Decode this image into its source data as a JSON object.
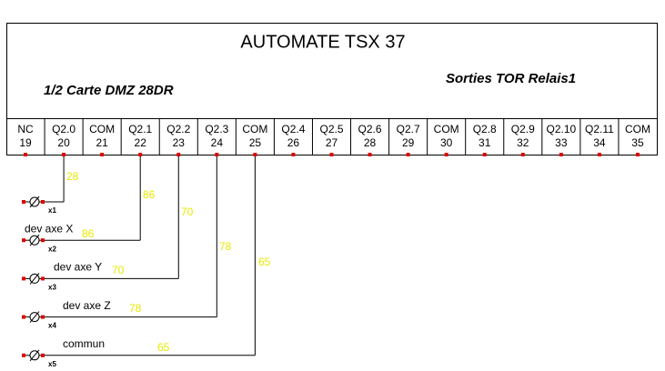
{
  "header": {
    "title": "AUTOMATE TSX 37",
    "card": "1/2 Carte DMZ 28DR",
    "outputs": "Sorties TOR Relais1"
  },
  "terminals": [
    {
      "label": "NC",
      "number": "19"
    },
    {
      "label": "Q2.0",
      "number": "20"
    },
    {
      "label": "COM",
      "number": "21"
    },
    {
      "label": "Q2.1",
      "number": "22"
    },
    {
      "label": "Q2.2",
      "number": "23"
    },
    {
      "label": "Q2.3",
      "number": "24"
    },
    {
      "label": "COM",
      "number": "25"
    },
    {
      "label": "Q2.4",
      "number": "26"
    },
    {
      "label": "Q2.5",
      "number": "27"
    },
    {
      "label": "Q2.6",
      "number": "28"
    },
    {
      "label": "Q2.7",
      "number": "29"
    },
    {
      "label": "COM",
      "number": "30"
    },
    {
      "label": "Q2.8",
      "number": "31"
    },
    {
      "label": "Q2.9",
      "number": "32"
    },
    {
      "label": "Q2.10",
      "number": "33"
    },
    {
      "label": "Q2.11",
      "number": "34"
    },
    {
      "label": "COM",
      "number": "35"
    }
  ],
  "connectors": [
    {
      "tag": "x1",
      "wire": "28"
    },
    {
      "tag": "x2",
      "device": "dev axe X",
      "wire": "86"
    },
    {
      "tag": "x3",
      "device": "dev axe Y",
      "wire": "70"
    },
    {
      "tag": "x4",
      "device": "dev axe Z",
      "wire": "78"
    },
    {
      "tag": "x5",
      "device": "commun",
      "wire": "65"
    }
  ]
}
